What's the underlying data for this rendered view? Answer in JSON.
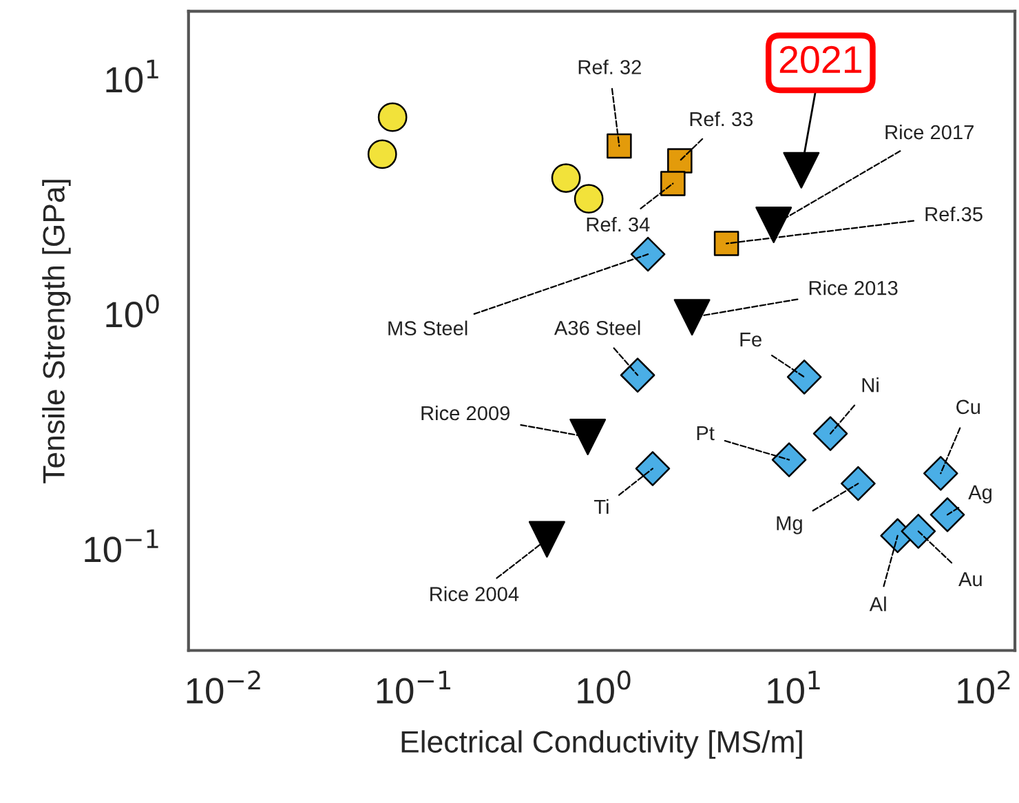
{
  "chart_data": {
    "type": "scatter",
    "xlabel": "Electrical Conductivity [MS/m]",
    "ylabel": "Tensile Strength [GPa]",
    "log": "xy",
    "grid": false,
    "xlim": [
      0.0065,
      145
    ],
    "ylim": [
      0.037,
      19.5
    ],
    "xticks": [
      {
        "value": 0.01,
        "label": "10$^{−2}$"
      },
      {
        "value": 0.1,
        "label": "10$^{−1}$"
      },
      {
        "value": 1,
        "label": "10$^{0}$"
      },
      {
        "value": 10,
        "label": "10$^{1}$"
      },
      {
        "value": 100,
        "label": "10$^{2}$"
      }
    ],
    "yticks": [
      {
        "value": 0.1,
        "label": "10$^{−1}$"
      },
      {
        "value": 1,
        "label": "10$^{0}$"
      },
      {
        "value": 10,
        "label": "10$^{1}$"
      }
    ],
    "series": [
      {
        "color": "#f2e23a",
        "marker": "circle",
        "x": [
          0.077,
          0.068,
          0.63,
          0.83
        ],
        "values": [
          6.9,
          4.8,
          3.8,
          3.1
        ]
      },
      {
        "color": "#e39b0b",
        "marker": "square",
        "x": [
          1.2,
          2.5,
          2.3,
          4.4
        ],
        "values": [
          5.2,
          4.5,
          3.6,
          2.0
        ]
      },
      {
        "color": "#4aaee6",
        "marker": "diamond",
        "x": [
          1.7,
          1.5,
          11.3,
          15.5,
          1.8,
          9.4,
          21.7,
          59,
          64,
          35,
          45
        ],
        "values": [
          1.8,
          0.55,
          0.54,
          0.31,
          0.22,
          0.24,
          0.19,
          0.21,
          0.14,
          0.114,
          0.119
        ]
      },
      {
        "color": "#000000",
        "marker": "triangle",
        "x": [
          10.9,
          7.8,
          2.9,
          0.82,
          0.5
        ],
        "values": [
          4.1,
          2.4,
          0.97,
          0.3,
          0.11
        ]
      }
    ],
    "annotations": [
      {
        "text": "2021",
        "x": 10.9,
        "y": 4.1
      },
      {
        "text": "Ref. 32",
        "x": 1.2,
        "y": 5.2
      },
      {
        "text": "Ref. 33",
        "x": 2.5,
        "y": 4.5
      },
      {
        "text": "Ref. 34",
        "x": 2.3,
        "y": 3.6
      },
      {
        "text": "Ref.35",
        "x": 4.4,
        "y": 2.0
      },
      {
        "text": "Rice 2017",
        "x": 7.8,
        "y": 2.4
      },
      {
        "text": "Rice 2013",
        "x": 2.9,
        "y": 0.97
      },
      {
        "text": "Rice 2009",
        "x": 0.82,
        "y": 0.3
      },
      {
        "text": "Rice 2004",
        "x": 0.5,
        "y": 0.11
      },
      {
        "text": "MS Steel",
        "x": 1.7,
        "y": 1.8
      },
      {
        "text": "A36 Steel",
        "x": 1.5,
        "y": 0.55
      },
      {
        "text": "Fe",
        "x": 11.3,
        "y": 0.54
      },
      {
        "text": "Ni",
        "x": 15.5,
        "y": 0.31
      },
      {
        "text": "Ti",
        "x": 1.8,
        "y": 0.22
      },
      {
        "text": "Pt",
        "x": 9.4,
        "y": 0.24
      },
      {
        "text": "Mg",
        "x": 21.7,
        "y": 0.19
      },
      {
        "text": "Cu",
        "x": 59,
        "y": 0.21
      },
      {
        "text": "Ag",
        "x": 64,
        "y": 0.14
      },
      {
        "text": "Al",
        "x": 35,
        "y": 0.114
      },
      {
        "text": "Au",
        "x": 45,
        "y": 0.119
      }
    ]
  }
}
